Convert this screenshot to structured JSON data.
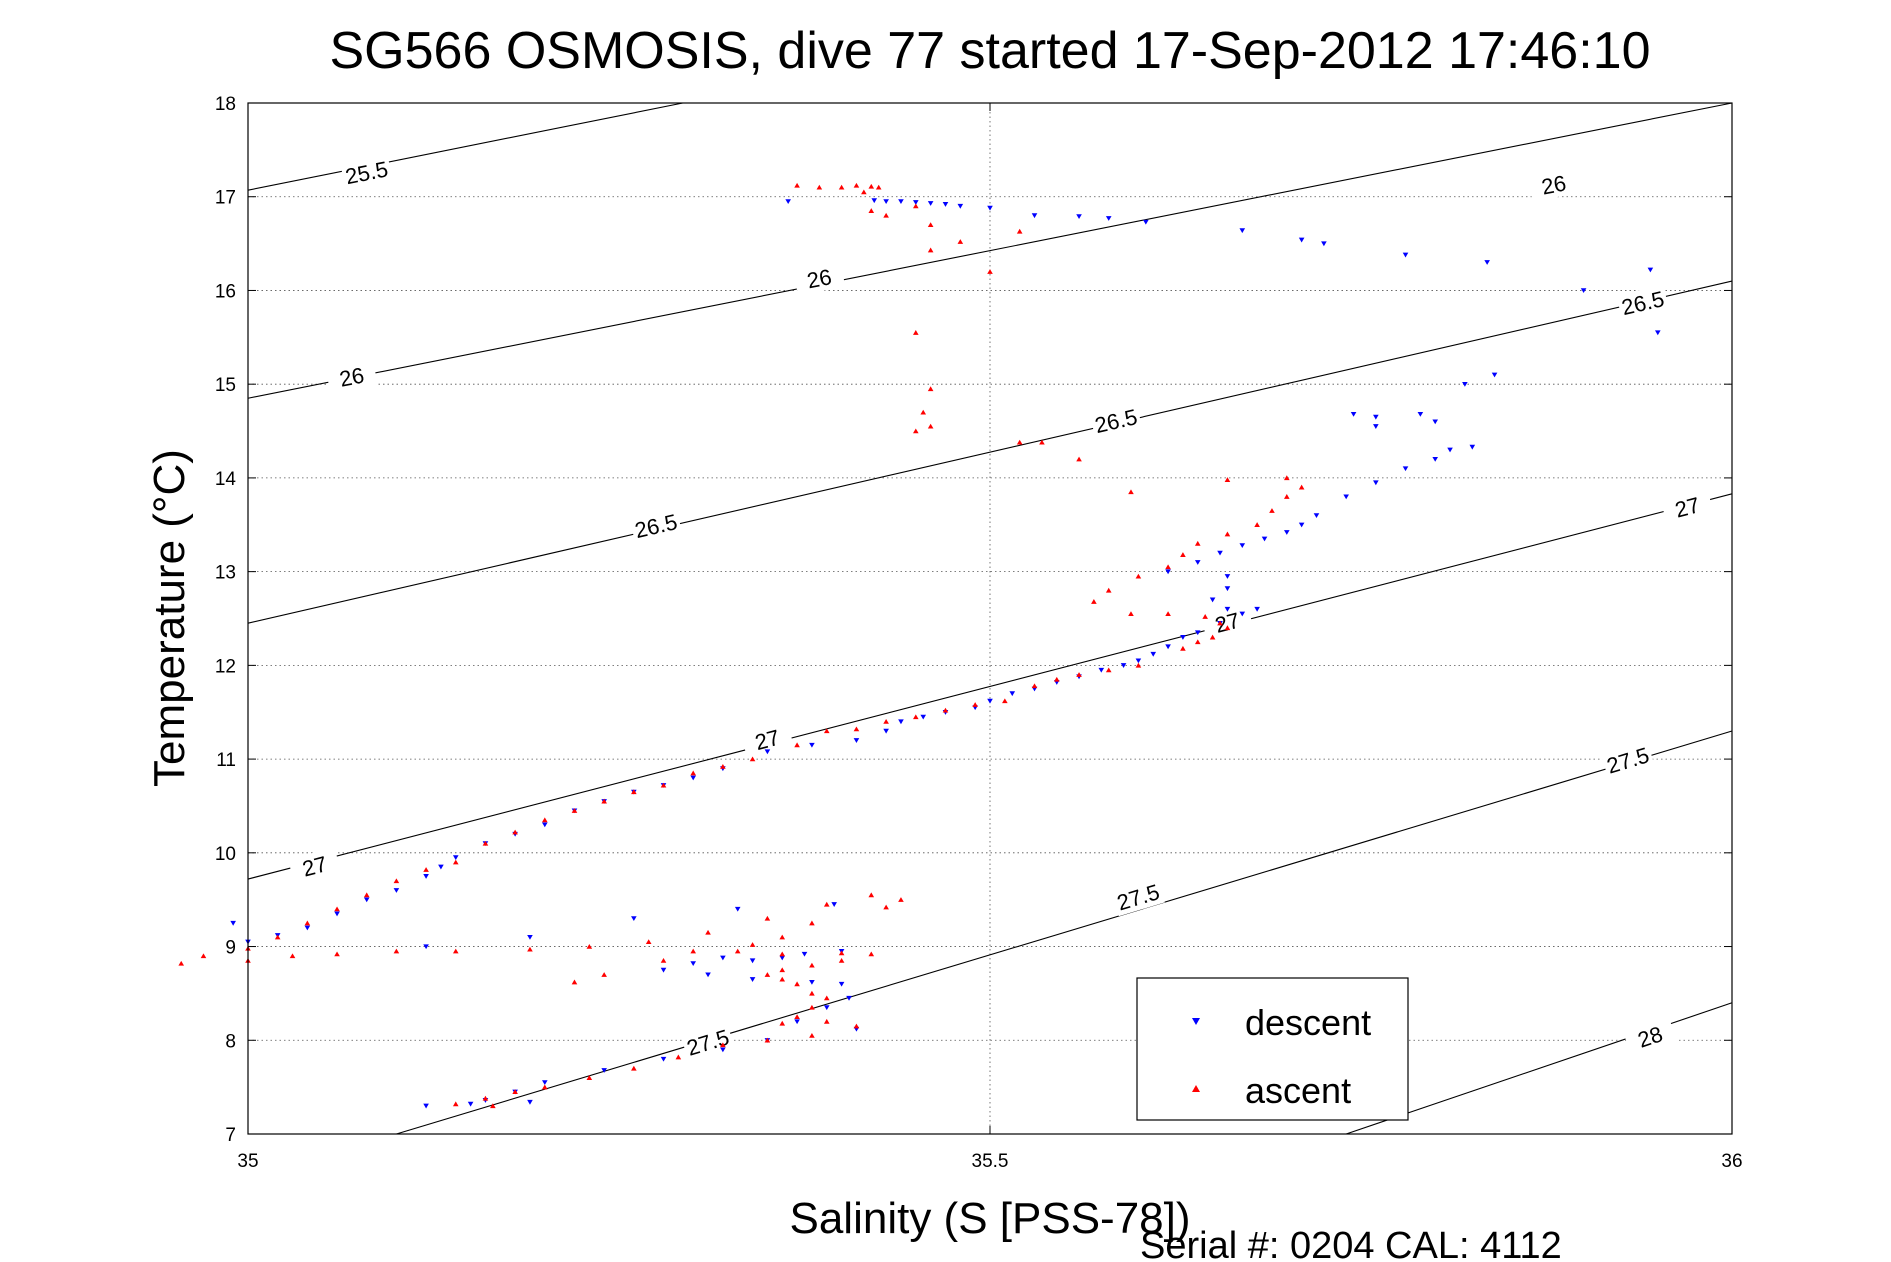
{
  "chart_data": {
    "type": "scatter",
    "title": "SG566 OSMOSIS, dive 77 started 17-Sep-2012 17:46:10",
    "xlabel": "Salinity (S [PSS-78])",
    "ylabel": "Temperature (°C)",
    "xlim": [
      35,
      36
    ],
    "ylim": [
      7,
      18
    ],
    "xticks": [
      "35",
      "35.5",
      "36"
    ],
    "yticks": [
      "7",
      "8",
      "9",
      "10",
      "11",
      "12",
      "13",
      "14",
      "15",
      "16",
      "17",
      "18"
    ],
    "grid": true,
    "legend": {
      "position": "bottom-right",
      "entries": [
        "descent",
        "ascent"
      ]
    },
    "footer": "Serial #: 0204  CAL: 4112",
    "contours": [
      {
        "sigma": "25.5",
        "line": [
          [
            35.0,
            17.07
          ],
          [
            35.293,
            18.0
          ]
        ],
        "labels": [
          [
            35.08,
            17.25
          ]
        ]
      },
      {
        "sigma": "26",
        "line": [
          [
            35.0,
            14.85
          ],
          [
            36.0,
            18.0
          ]
        ],
        "labels": [
          [
            35.07,
            15.07
          ],
          [
            35.385,
            16.12
          ],
          [
            35.88,
            17.12
          ]
        ]
      },
      {
        "sigma": "26.5",
        "line": [
          [
            35.0,
            12.45
          ],
          [
            36.0,
            16.1
          ]
        ],
        "labels": [
          [
            35.275,
            13.48
          ],
          [
            35.585,
            14.6
          ],
          [
            35.94,
            15.86
          ]
        ]
      },
      {
        "sigma": "27",
        "line": [
          [
            35.0,
            9.72
          ],
          [
            36.0,
            13.83
          ]
        ],
        "labels": [
          [
            35.045,
            9.85
          ],
          [
            35.35,
            11.2
          ],
          [
            35.66,
            12.45
          ],
          [
            35.97,
            13.68
          ]
        ]
      },
      {
        "sigma": "27.5",
        "line": [
          [
            35.1,
            7.0
          ],
          [
            36.0,
            11.3
          ]
        ],
        "labels": [
          [
            35.31,
            7.97
          ],
          [
            35.6,
            9.52
          ],
          [
            35.93,
            10.98
          ]
        ]
      },
      {
        "sigma": "28",
        "line": [
          [
            35.74,
            7.0
          ],
          [
            36.0,
            8.4
          ]
        ],
        "labels": [
          [
            35.945,
            8.03
          ]
        ]
      }
    ],
    "series": [
      {
        "name": "descent",
        "color": "#0000ff",
        "marker": "triangle-down",
        "points": [
          [
            35.364,
            16.95
          ],
          [
            35.422,
            16.96
          ],
          [
            35.43,
            16.95
          ],
          [
            35.44,
            16.95
          ],
          [
            35.45,
            16.94
          ],
          [
            35.46,
            16.93
          ],
          [
            35.47,
            16.92
          ],
          [
            35.48,
            16.9
          ],
          [
            35.5,
            16.88
          ],
          [
            35.53,
            16.8
          ],
          [
            35.56,
            16.79
          ],
          [
            35.58,
            16.77
          ],
          [
            35.605,
            16.73
          ],
          [
            35.67,
            16.64
          ],
          [
            35.71,
            16.54
          ],
          [
            35.725,
            16.5
          ],
          [
            35.78,
            16.38
          ],
          [
            35.835,
            16.3
          ],
          [
            35.9,
            16.0
          ],
          [
            35.945,
            16.22
          ],
          [
            35.95,
            15.55
          ],
          [
            35.84,
            15.1
          ],
          [
            35.82,
            15.0
          ],
          [
            35.745,
            14.68
          ],
          [
            35.76,
            14.65
          ],
          [
            35.79,
            14.68
          ],
          [
            35.8,
            14.6
          ],
          [
            35.76,
            14.55
          ],
          [
            35.81,
            14.3
          ],
          [
            35.825,
            14.33
          ],
          [
            35.8,
            14.2
          ],
          [
            35.78,
            14.1
          ],
          [
            35.76,
            13.95
          ],
          [
            35.74,
            13.8
          ],
          [
            35.72,
            13.6
          ],
          [
            35.71,
            13.5
          ],
          [
            35.7,
            13.42
          ],
          [
            35.685,
            13.35
          ],
          [
            35.67,
            13.28
          ],
          [
            35.655,
            13.2
          ],
          [
            35.64,
            13.1
          ],
          [
            35.62,
            13.0
          ],
          [
            35.66,
            12.95
          ],
          [
            35.66,
            12.82
          ],
          [
            35.65,
            12.7
          ],
          [
            35.66,
            12.6
          ],
          [
            35.67,
            12.55
          ],
          [
            35.68,
            12.6
          ],
          [
            35.655,
            12.45
          ],
          [
            35.64,
            12.35
          ],
          [
            35.63,
            12.3
          ],
          [
            35.62,
            12.2
          ],
          [
            35.61,
            12.12
          ],
          [
            35.6,
            12.05
          ],
          [
            35.59,
            12.0
          ],
          [
            35.575,
            11.95
          ],
          [
            35.56,
            11.88
          ],
          [
            35.545,
            11.82
          ],
          [
            35.53,
            11.75
          ],
          [
            35.515,
            11.7
          ],
          [
            35.5,
            11.62
          ],
          [
            35.49,
            11.55
          ],
          [
            35.47,
            11.5
          ],
          [
            35.455,
            11.45
          ],
          [
            35.44,
            11.4
          ],
          [
            35.43,
            11.3
          ],
          [
            35.41,
            11.2
          ],
          [
            35.38,
            11.15
          ],
          [
            35.35,
            11.08
          ],
          [
            35.32,
            10.9
          ],
          [
            35.3,
            10.8
          ],
          [
            35.28,
            10.72
          ],
          [
            35.26,
            10.65
          ],
          [
            35.24,
            10.55
          ],
          [
            35.22,
            10.45
          ],
          [
            35.2,
            10.3
          ],
          [
            35.18,
            10.2
          ],
          [
            35.16,
            10.1
          ],
          [
            35.14,
            9.95
          ],
          [
            35.13,
            9.85
          ],
          [
            35.12,
            9.75
          ],
          [
            35.1,
            9.6
          ],
          [
            35.08,
            9.5
          ],
          [
            35.06,
            9.35
          ],
          [
            35.04,
            9.2
          ],
          [
            35.02,
            9.12
          ],
          [
            35.0,
            9.05
          ],
          [
            34.99,
            9.25
          ],
          [
            35.12,
            9.0
          ],
          [
            35.19,
            9.1
          ],
          [
            35.26,
            9.3
          ],
          [
            35.33,
            9.4
          ],
          [
            35.395,
            9.45
          ],
          [
            35.375,
            8.92
          ],
          [
            35.4,
            8.95
          ],
          [
            35.36,
            8.88
          ],
          [
            35.34,
            8.85
          ],
          [
            35.32,
            8.88
          ],
          [
            35.3,
            8.82
          ],
          [
            35.28,
            8.75
          ],
          [
            35.31,
            8.7
          ],
          [
            35.34,
            8.65
          ],
          [
            35.38,
            8.62
          ],
          [
            35.4,
            8.6
          ],
          [
            35.405,
            8.45
          ],
          [
            35.39,
            8.35
          ],
          [
            35.37,
            8.2
          ],
          [
            35.41,
            8.12
          ],
          [
            35.35,
            8.0
          ],
          [
            35.32,
            7.9
          ],
          [
            35.28,
            7.8
          ],
          [
            35.24,
            7.68
          ],
          [
            35.2,
            7.55
          ],
          [
            35.18,
            7.45
          ],
          [
            35.16,
            7.36
          ],
          [
            35.15,
            7.32
          ],
          [
            35.12,
            7.3
          ],
          [
            35.19,
            7.34
          ]
        ]
      },
      {
        "name": "ascent",
        "color": "#ff0000",
        "marker": "triangle-up",
        "points": [
          [
            35.37,
            17.12
          ],
          [
            35.385,
            17.1
          ],
          [
            35.4,
            17.1
          ],
          [
            35.41,
            17.12
          ],
          [
            35.42,
            17.11
          ],
          [
            35.425,
            17.1
          ],
          [
            35.415,
            17.05
          ],
          [
            35.42,
            16.85
          ],
          [
            35.43,
            16.8
          ],
          [
            35.45,
            16.9
          ],
          [
            35.46,
            16.7
          ],
          [
            35.48,
            16.52
          ],
          [
            35.5,
            16.2
          ],
          [
            35.52,
            16.63
          ],
          [
            35.46,
            16.43
          ],
          [
            35.45,
            15.55
          ],
          [
            35.46,
            14.95
          ],
          [
            35.455,
            14.7
          ],
          [
            35.45,
            14.5
          ],
          [
            35.46,
            14.55
          ],
          [
            35.52,
            14.38
          ],
          [
            35.535,
            14.38
          ],
          [
            35.56,
            14.2
          ],
          [
            35.595,
            13.85
          ],
          [
            35.66,
            13.98
          ],
          [
            35.7,
            14.0
          ],
          [
            35.71,
            13.9
          ],
          [
            35.7,
            13.8
          ],
          [
            35.69,
            13.65
          ],
          [
            35.68,
            13.5
          ],
          [
            35.66,
            13.4
          ],
          [
            35.64,
            13.3
          ],
          [
            35.63,
            13.18
          ],
          [
            35.62,
            13.05
          ],
          [
            35.6,
            12.95
          ],
          [
            35.58,
            12.8
          ],
          [
            35.57,
            12.68
          ],
          [
            35.595,
            12.55
          ],
          [
            35.62,
            12.55
          ],
          [
            35.645,
            12.52
          ],
          [
            35.655,
            12.45
          ],
          [
            35.66,
            12.4
          ],
          [
            35.65,
            12.3
          ],
          [
            35.64,
            12.25
          ],
          [
            35.63,
            12.18
          ],
          [
            35.6,
            12.0
          ],
          [
            35.58,
            11.95
          ],
          [
            35.56,
            11.9
          ],
          [
            35.545,
            11.85
          ],
          [
            35.53,
            11.78
          ],
          [
            35.51,
            11.62
          ],
          [
            35.49,
            11.58
          ],
          [
            35.47,
            11.52
          ],
          [
            35.45,
            11.45
          ],
          [
            35.43,
            11.4
          ],
          [
            35.41,
            11.32
          ],
          [
            35.39,
            11.3
          ],
          [
            35.37,
            11.15
          ],
          [
            35.34,
            11.0
          ],
          [
            35.32,
            10.92
          ],
          [
            35.3,
            10.85
          ],
          [
            35.28,
            10.72
          ],
          [
            35.26,
            10.65
          ],
          [
            35.24,
            10.55
          ],
          [
            35.22,
            10.45
          ],
          [
            35.2,
            10.35
          ],
          [
            35.18,
            10.22
          ],
          [
            35.16,
            10.1
          ],
          [
            35.14,
            9.9
          ],
          [
            35.12,
            9.82
          ],
          [
            35.1,
            9.7
          ],
          [
            35.08,
            9.55
          ],
          [
            35.06,
            9.4
          ],
          [
            35.04,
            9.25
          ],
          [
            35.02,
            9.1
          ],
          [
            35.0,
            8.98
          ],
          [
            34.97,
            8.9
          ],
          [
            34.955,
            8.82
          ],
          [
            35.0,
            8.85
          ],
          [
            35.03,
            8.9
          ],
          [
            35.06,
            8.92
          ],
          [
            35.1,
            8.95
          ],
          [
            35.14,
            8.95
          ],
          [
            35.19,
            8.97
          ],
          [
            35.23,
            9.0
          ],
          [
            35.27,
            9.05
          ],
          [
            35.31,
            9.15
          ],
          [
            35.35,
            9.3
          ],
          [
            35.39,
            9.45
          ],
          [
            35.42,
            9.55
          ],
          [
            35.44,
            9.5
          ],
          [
            35.43,
            9.42
          ],
          [
            35.38,
            9.25
          ],
          [
            35.36,
            9.1
          ],
          [
            35.34,
            9.02
          ],
          [
            35.33,
            8.95
          ],
          [
            35.36,
            8.92
          ],
          [
            35.4,
            8.93
          ],
          [
            35.42,
            8.92
          ],
          [
            35.4,
            8.85
          ],
          [
            35.38,
            8.8
          ],
          [
            35.36,
            8.75
          ],
          [
            35.35,
            8.7
          ],
          [
            35.36,
            8.65
          ],
          [
            35.37,
            8.6
          ],
          [
            35.38,
            8.5
          ],
          [
            35.39,
            8.45
          ],
          [
            35.38,
            8.35
          ],
          [
            35.37,
            8.25
          ],
          [
            35.36,
            8.18
          ],
          [
            35.39,
            8.2
          ],
          [
            35.41,
            8.15
          ],
          [
            35.38,
            8.05
          ],
          [
            35.35,
            8.0
          ],
          [
            35.32,
            7.95
          ],
          [
            35.29,
            7.82
          ],
          [
            35.26,
            7.7
          ],
          [
            35.23,
            7.6
          ],
          [
            35.2,
            7.5
          ],
          [
            35.18,
            7.45
          ],
          [
            35.16,
            7.38
          ],
          [
            35.14,
            7.32
          ],
          [
            35.165,
            7.3
          ],
          [
            35.28,
            8.85
          ],
          [
            35.3,
            8.95
          ],
          [
            35.24,
            8.7
          ],
          [
            35.22,
            8.62
          ]
        ]
      }
    ]
  }
}
